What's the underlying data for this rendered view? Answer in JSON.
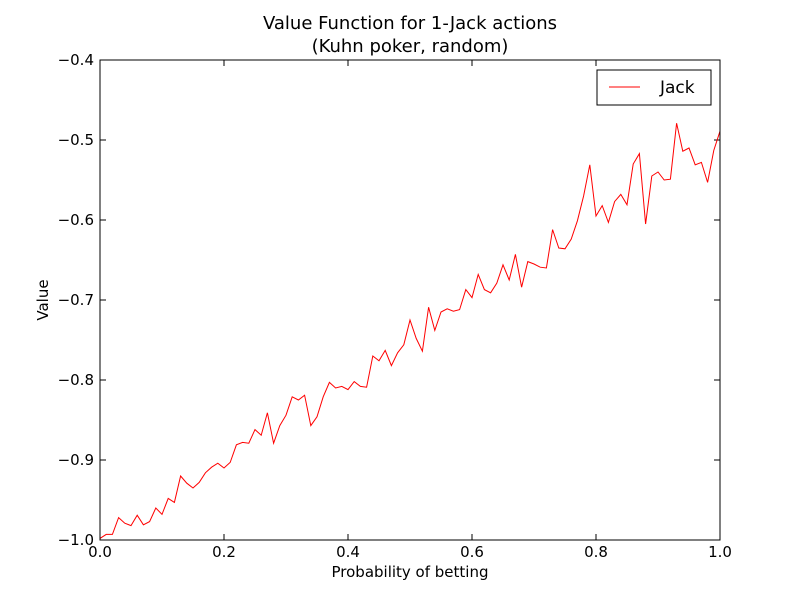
{
  "chart_data": {
    "type": "line",
    "title": "Value Function for 1-Jack actions",
    "subtitle": "(Kuhn poker, random)",
    "xlabel": "Probability of betting",
    "ylabel": "Value",
    "xlim": [
      0.0,
      1.0
    ],
    "ylim": [
      -1.0,
      -0.4
    ],
    "xticks": [
      0.0,
      0.2,
      0.4,
      0.6,
      0.8,
      1.0
    ],
    "xtick_labels": [
      "0.0",
      "0.2",
      "0.4",
      "0.6",
      "0.8",
      "1.0"
    ],
    "yticks": [
      -1.0,
      -0.9,
      -0.8,
      -0.7,
      -0.6,
      -0.5,
      -0.4
    ],
    "ytick_labels": [
      "−1.0",
      "−0.9",
      "−0.8",
      "−0.7",
      "−0.6",
      "−0.5",
      "−0.4"
    ],
    "grid": false,
    "legend_position": "top-right",
    "series": [
      {
        "name": "Jack",
        "color": "#ff0000",
        "x": [
          0.0,
          0.01,
          0.02,
          0.03,
          0.04,
          0.05,
          0.06,
          0.07,
          0.08,
          0.09,
          0.1,
          0.11,
          0.12,
          0.13,
          0.14,
          0.15,
          0.16,
          0.17,
          0.18,
          0.19,
          0.2,
          0.21,
          0.22,
          0.23,
          0.24,
          0.25,
          0.26,
          0.27,
          0.28,
          0.29,
          0.3,
          0.31,
          0.32,
          0.33,
          0.34,
          0.35,
          0.36,
          0.37,
          0.38,
          0.39,
          0.4,
          0.41,
          0.42,
          0.43,
          0.44,
          0.45,
          0.46,
          0.47,
          0.48,
          0.49,
          0.5,
          0.51,
          0.52,
          0.53,
          0.54,
          0.55,
          0.56,
          0.57,
          0.58,
          0.59,
          0.6,
          0.61,
          0.62,
          0.63,
          0.64,
          0.65,
          0.66,
          0.67,
          0.68,
          0.69,
          0.7,
          0.71,
          0.72,
          0.73,
          0.74,
          0.75,
          0.76,
          0.77,
          0.78,
          0.79,
          0.8,
          0.81,
          0.82,
          0.83,
          0.84,
          0.85,
          0.86,
          0.87,
          0.88,
          0.89,
          0.9,
          0.91,
          0.92,
          0.93,
          0.94,
          0.95,
          0.96,
          0.97,
          0.98,
          0.99,
          1.0
        ],
        "y": [
          -0.998,
          -0.993,
          -0.993,
          -0.972,
          -0.979,
          -0.982,
          -0.969,
          -0.981,
          -0.977,
          -0.96,
          -0.968,
          -0.948,
          -0.953,
          -0.92,
          -0.929,
          -0.935,
          -0.928,
          -0.916,
          -0.909,
          -0.904,
          -0.91,
          -0.903,
          -0.881,
          -0.878,
          -0.879,
          -0.862,
          -0.869,
          -0.841,
          -0.879,
          -0.857,
          -0.844,
          -0.821,
          -0.825,
          -0.819,
          -0.857,
          -0.846,
          -0.821,
          -0.803,
          -0.81,
          -0.808,
          -0.812,
          -0.802,
          -0.808,
          -0.809,
          -0.77,
          -0.776,
          -0.763,
          -0.782,
          -0.766,
          -0.756,
          -0.725,
          -0.748,
          -0.764,
          -0.709,
          -0.738,
          -0.715,
          -0.711,
          -0.714,
          -0.712,
          -0.687,
          -0.697,
          -0.668,
          -0.687,
          -0.691,
          -0.679,
          -0.656,
          -0.675,
          -0.643,
          -0.684,
          -0.652,
          -0.655,
          -0.659,
          -0.66,
          -0.612,
          -0.635,
          -0.636,
          -0.624,
          -0.601,
          -0.57,
          -0.531,
          -0.595,
          -0.582,
          -0.603,
          -0.577,
          -0.568,
          -0.581,
          -0.53,
          -0.517,
          -0.605,
          -0.545,
          -0.54,
          -0.55,
          -0.549,
          -0.479,
          -0.514,
          -0.51,
          -0.531,
          -0.528,
          -0.553,
          -0.513,
          -0.489
        ]
      }
    ]
  }
}
